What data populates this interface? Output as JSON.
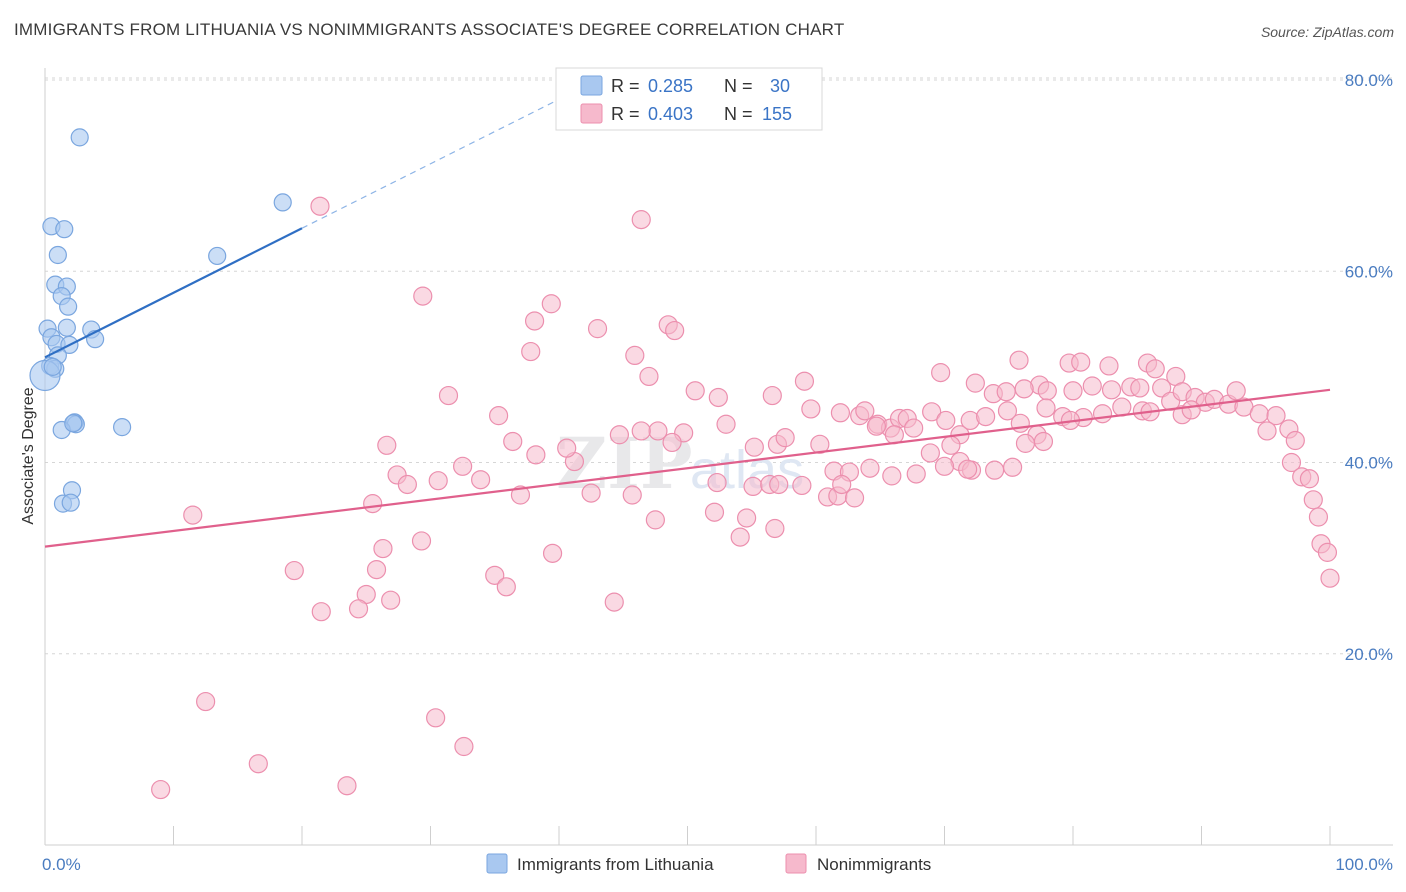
{
  "title": "IMMIGRANTS FROM LITHUANIA VS NONIMMIGRANTS ASSOCIATE'S DEGREE CORRELATION CHART",
  "source": "Source: ZipAtlas.com",
  "watermark": {
    "zip": "ZIP",
    "atlas": "atlas"
  },
  "legend": {
    "rows": [
      {
        "r_label": "R =",
        "r_value": "0.285",
        "n_label": "N =",
        "n_value": "30",
        "color": "#a9c8f0"
      },
      {
        "r_label": "R =",
        "r_value": "0.403",
        "n_label": "N =",
        "n_value": "155",
        "color": "#f6b9cc"
      }
    ]
  },
  "bottom_legend": [
    "Immigrants from Lithuania",
    "Nonimmigrants"
  ],
  "colors": {
    "blue_fill": "#a9c8f0",
    "blue_stroke": "#7aa6df",
    "blue_line": "#2f6fc4",
    "pink_fill": "#f6b9cc",
    "pink_stroke": "#ec8fae",
    "pink_line": "#e0608c",
    "grid": "#d6d6d6",
    "axis_label": "#4a7cc0"
  },
  "chart_data": {
    "type": "scatter",
    "title": "IMMIGRANTS FROM LITHUANIA VS NONIMMIGRANTS ASSOCIATE'S DEGREE CORRELATION CHART",
    "xlabel": "",
    "ylabel": "Associate's Degree",
    "xlim": [
      0,
      100
    ],
    "ylim": [
      0,
      82
    ],
    "x_ticks": [
      "0.0%",
      "100.0%"
    ],
    "y_ticks": [
      {
        "value": 20,
        "label": "20.0%"
      },
      {
        "value": 40,
        "label": "40.0%"
      },
      {
        "value": 60,
        "label": "60.0%"
      },
      {
        "value": 80,
        "label": "80.0%"
      }
    ],
    "grid": true,
    "legend_position": "top-center",
    "series": [
      {
        "name": "Immigrants from Lithuania",
        "R": 0.285,
        "N": 30,
        "trend": {
          "x0": 0,
          "y0": 51.0,
          "x1": 20,
          "y1": 64.5,
          "dashed_to_x": 43,
          "dashed_to_y": 80.0
        },
        "points": [
          [
            2.7,
            74.0
          ],
          [
            0.5,
            64.7
          ],
          [
            1.5,
            64.4
          ],
          [
            1.0,
            61.7
          ],
          [
            18.5,
            67.2
          ],
          [
            13.4,
            61.6
          ],
          [
            0.8,
            58.6
          ],
          [
            1.7,
            58.4
          ],
          [
            1.3,
            57.4
          ],
          [
            1.8,
            56.3
          ],
          [
            0.2,
            54.0
          ],
          [
            1.7,
            54.1
          ],
          [
            3.6,
            53.9
          ],
          [
            3.9,
            52.9
          ],
          [
            0.5,
            53.1
          ],
          [
            0.9,
            52.4
          ],
          [
            1.9,
            52.3
          ],
          [
            1.0,
            51.2
          ],
          [
            0.4,
            50.1
          ],
          [
            0.8,
            49.8
          ],
          [
            0.0,
            49.1
          ],
          [
            2.3,
            44.2
          ],
          [
            2.4,
            44.0
          ],
          [
            1.3,
            43.4
          ],
          [
            2.2,
            44.1
          ],
          [
            6.0,
            43.7
          ],
          [
            2.1,
            37.1
          ],
          [
            1.4,
            35.7
          ],
          [
            2.0,
            35.8
          ],
          [
            0.6,
            50.0
          ]
        ]
      },
      {
        "name": "Nonimmigrants",
        "R": 0.403,
        "N": 155,
        "trend": {
          "x0": 0,
          "y0": 31.2,
          "x1": 100,
          "y1": 47.6
        },
        "points": [
          [
            21.4,
            66.8
          ],
          [
            46.4,
            65.4
          ],
          [
            29.4,
            57.4
          ],
          [
            39.4,
            56.6
          ],
          [
            38.1,
            54.8
          ],
          [
            43.0,
            54.0
          ],
          [
            48.5,
            54.4
          ],
          [
            49.0,
            53.8
          ],
          [
            37.8,
            51.6
          ],
          [
            45.9,
            51.2
          ],
          [
            47.0,
            49.0
          ],
          [
            59.1,
            48.5
          ],
          [
            31.4,
            47.0
          ],
          [
            50.6,
            47.5
          ],
          [
            52.4,
            46.8
          ],
          [
            56.6,
            47.0
          ],
          [
            69.7,
            49.4
          ],
          [
            72.4,
            48.3
          ],
          [
            75.8,
            50.7
          ],
          [
            77.4,
            48.1
          ],
          [
            79.7,
            50.4
          ],
          [
            80.6,
            50.5
          ],
          [
            82.8,
            50.1
          ],
          [
            85.8,
            50.4
          ],
          [
            86.4,
            49.8
          ],
          [
            88.0,
            49.0
          ],
          [
            73.8,
            47.2
          ],
          [
            74.8,
            47.4
          ],
          [
            76.2,
            47.7
          ],
          [
            78.0,
            47.5
          ],
          [
            80.0,
            47.5
          ],
          [
            81.5,
            48.0
          ],
          [
            83.0,
            47.6
          ],
          [
            84.5,
            47.9
          ],
          [
            85.2,
            47.8
          ],
          [
            86.9,
            47.8
          ],
          [
            87.6,
            46.4
          ],
          [
            88.5,
            47.4
          ],
          [
            89.5,
            46.8
          ],
          [
            90.3,
            46.3
          ],
          [
            91.0,
            46.6
          ],
          [
            92.1,
            46.1
          ],
          [
            93.3,
            45.8
          ],
          [
            92.7,
            47.5
          ],
          [
            94.5,
            45.1
          ],
          [
            95.8,
            44.9
          ],
          [
            96.8,
            43.5
          ],
          [
            95.1,
            43.3
          ],
          [
            97.3,
            42.3
          ],
          [
            97.0,
            40.0
          ],
          [
            97.8,
            38.5
          ],
          [
            98.4,
            38.3
          ],
          [
            98.7,
            36.1
          ],
          [
            99.1,
            34.3
          ],
          [
            99.3,
            31.5
          ],
          [
            99.8,
            30.6
          ],
          [
            100.0,
            27.9
          ],
          [
            59.6,
            45.6
          ],
          [
            61.9,
            45.2
          ],
          [
            63.4,
            44.9
          ],
          [
            63.8,
            45.4
          ],
          [
            64.8,
            44.0
          ],
          [
            65.8,
            43.6
          ],
          [
            66.5,
            44.6
          ],
          [
            67.1,
            44.6
          ],
          [
            69.0,
            45.3
          ],
          [
            70.1,
            44.4
          ],
          [
            71.2,
            42.9
          ],
          [
            72.0,
            44.4
          ],
          [
            73.2,
            44.8
          ],
          [
            74.9,
            45.4
          ],
          [
            75.9,
            44.1
          ],
          [
            77.2,
            42.9
          ],
          [
            77.9,
            45.7
          ],
          [
            79.2,
            44.8
          ],
          [
            80.8,
            44.7
          ],
          [
            82.3,
            45.1
          ],
          [
            83.8,
            45.8
          ],
          [
            85.4,
            45.4
          ],
          [
            86.0,
            45.3
          ],
          [
            88.5,
            45.0
          ],
          [
            89.2,
            45.5
          ],
          [
            53.0,
            44.0
          ],
          [
            55.2,
            41.6
          ],
          [
            57.0,
            41.9
          ],
          [
            57.6,
            42.6
          ],
          [
            60.3,
            41.9
          ],
          [
            61.4,
            39.1
          ],
          [
            62.6,
            39.0
          ],
          [
            64.7,
            43.8
          ],
          [
            66.1,
            42.9
          ],
          [
            67.6,
            43.6
          ],
          [
            68.9,
            41.0
          ],
          [
            70.5,
            41.8
          ],
          [
            71.2,
            40.1
          ],
          [
            72.1,
            39.2
          ],
          [
            73.9,
            39.2
          ],
          [
            75.3,
            39.5
          ],
          [
            76.3,
            42.0
          ],
          [
            77.7,
            42.2
          ],
          [
            79.8,
            44.4
          ],
          [
            60.9,
            36.4
          ],
          [
            61.7,
            36.5
          ],
          [
            63.0,
            36.3
          ],
          [
            64.2,
            39.4
          ],
          [
            65.9,
            38.6
          ],
          [
            67.8,
            38.8
          ],
          [
            70.0,
            39.6
          ],
          [
            71.8,
            39.3
          ],
          [
            55.1,
            37.5
          ],
          [
            56.4,
            37.7
          ],
          [
            57.1,
            37.7
          ],
          [
            58.9,
            37.6
          ],
          [
            62.0,
            37.7
          ],
          [
            52.3,
            37.9
          ],
          [
            49.7,
            43.1
          ],
          [
            48.8,
            42.1
          ],
          [
            47.7,
            43.3
          ],
          [
            46.4,
            43.3
          ],
          [
            44.7,
            42.9
          ],
          [
            41.2,
            40.1
          ],
          [
            40.6,
            41.5
          ],
          [
            38.2,
            40.8
          ],
          [
            36.4,
            42.2
          ],
          [
            35.3,
            44.9
          ],
          [
            32.5,
            39.6
          ],
          [
            33.9,
            38.2
          ],
          [
            30.6,
            38.1
          ],
          [
            27.4,
            38.7
          ],
          [
            28.2,
            37.7
          ],
          [
            26.6,
            41.8
          ],
          [
            25.5,
            35.7
          ],
          [
            37.0,
            36.6
          ],
          [
            42.5,
            36.8
          ],
          [
            45.7,
            36.6
          ],
          [
            52.1,
            34.8
          ],
          [
            54.6,
            34.2
          ],
          [
            56.8,
            33.1
          ],
          [
            47.5,
            34.0
          ],
          [
            54.1,
            32.2
          ],
          [
            29.3,
            31.8
          ],
          [
            26.3,
            31.0
          ],
          [
            39.5,
            30.5
          ],
          [
            25.8,
            28.8
          ],
          [
            19.4,
            28.7
          ],
          [
            35.0,
            28.2
          ],
          [
            35.9,
            27.0
          ],
          [
            25.0,
            26.2
          ],
          [
            26.9,
            25.6
          ],
          [
            24.4,
            24.7
          ],
          [
            21.5,
            24.4
          ],
          [
            44.3,
            25.4
          ],
          [
            11.5,
            34.5
          ],
          [
            12.5,
            15.0
          ],
          [
            16.6,
            8.5
          ],
          [
            9.0,
            5.8
          ],
          [
            23.5,
            6.2
          ],
          [
            30.4,
            13.3
          ],
          [
            32.6,
            10.3
          ]
        ]
      }
    ]
  }
}
